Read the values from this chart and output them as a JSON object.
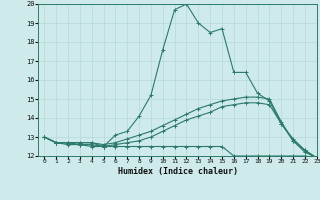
{
  "xlabel": "Humidex (Indice chaleur)",
  "xlim": [
    -0.5,
    23
  ],
  "ylim": [
    12,
    20
  ],
  "yticks": [
    12,
    13,
    14,
    15,
    16,
    17,
    18,
    19,
    20
  ],
  "xticks": [
    0,
    1,
    2,
    3,
    4,
    5,
    6,
    7,
    8,
    9,
    10,
    11,
    12,
    13,
    14,
    15,
    16,
    17,
    18,
    19,
    20,
    21,
    22,
    23
  ],
  "bg_color": "#ceeaea",
  "line_color": "#2a7a6a",
  "grid_color": "#b8d8d8",
  "lines": [
    {
      "x": [
        0,
        1,
        2,
        3,
        4,
        5,
        6,
        7,
        8,
        9,
        10,
        11,
        12,
        13,
        14,
        15,
        16,
        17,
        18,
        19,
        20,
        21,
        22,
        23
      ],
      "y": [
        13.0,
        12.7,
        12.7,
        12.7,
        12.7,
        12.5,
        13.1,
        13.3,
        14.1,
        15.2,
        17.6,
        19.7,
        20.0,
        19.0,
        18.5,
        18.7,
        16.4,
        16.4,
        15.3,
        14.9,
        13.7,
        12.9,
        12.3,
        11.9
      ]
    },
    {
      "x": [
        0,
        1,
        2,
        3,
        4,
        5,
        6,
        7,
        8,
        9,
        10,
        11,
        12,
        13,
        14,
        15,
        16,
        17,
        18,
        19,
        20,
        21,
        22,
        23
      ],
      "y": [
        13.0,
        12.7,
        12.6,
        12.6,
        12.5,
        12.5,
        12.5,
        12.5,
        12.5,
        12.5,
        12.5,
        12.5,
        12.5,
        12.5,
        12.5,
        12.5,
        12.0,
        12.0,
        12.0,
        12.0,
        12.0,
        12.0,
        12.0,
        11.9
      ]
    },
    {
      "x": [
        0,
        1,
        2,
        3,
        4,
        5,
        6,
        7,
        8,
        9,
        10,
        11,
        12,
        13,
        14,
        15,
        16,
        17,
        18,
        19,
        20,
        21,
        22,
        23
      ],
      "y": [
        13.0,
        12.7,
        12.7,
        12.7,
        12.7,
        12.6,
        12.7,
        12.9,
        13.1,
        13.3,
        13.6,
        13.9,
        14.2,
        14.5,
        14.7,
        14.9,
        15.0,
        15.1,
        15.1,
        15.0,
        13.8,
        12.8,
        12.3,
        11.9
      ]
    },
    {
      "x": [
        0,
        1,
        2,
        3,
        4,
        5,
        6,
        7,
        8,
        9,
        10,
        11,
        12,
        13,
        14,
        15,
        16,
        17,
        18,
        19,
        20,
        21,
        22,
        23
      ],
      "y": [
        13.0,
        12.7,
        12.7,
        12.6,
        12.6,
        12.5,
        12.6,
        12.7,
        12.8,
        13.0,
        13.3,
        13.6,
        13.9,
        14.1,
        14.3,
        14.6,
        14.7,
        14.8,
        14.8,
        14.7,
        13.7,
        12.8,
        12.2,
        11.9
      ]
    }
  ],
  "marker": "+"
}
